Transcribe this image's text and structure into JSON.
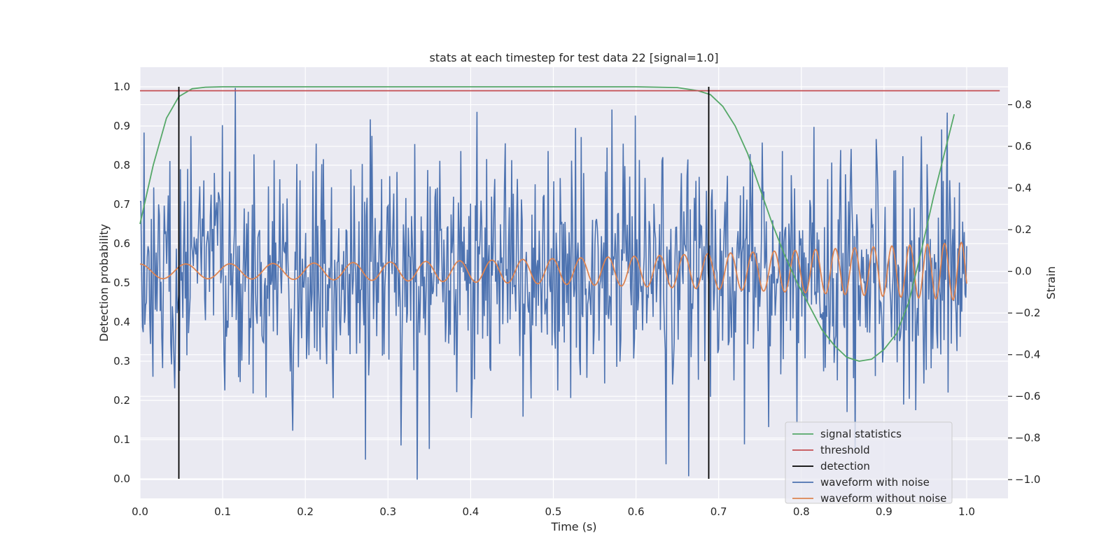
{
  "chart_data": {
    "type": "line",
    "title": "stats at each timestep for test data 22 [signal=1.0]",
    "xlabel": "Time (s)",
    "ylabel_left": "Detection probability",
    "ylabel_right": "Strain",
    "xlim": [
      0.0,
      1.05
    ],
    "ylim_left": [
      -0.05,
      1.05
    ],
    "ylim_right": [
      -1.09,
      0.98
    ],
    "x_ticks": [
      "0.0",
      "0.1",
      "0.2",
      "0.3",
      "0.4",
      "0.5",
      "0.6",
      "0.7",
      "0.8",
      "0.9",
      "1.0"
    ],
    "y_left_ticks": [
      "0.0",
      "0.1",
      "0.2",
      "0.3",
      "0.4",
      "0.5",
      "0.6",
      "0.7",
      "0.8",
      "0.9",
      "1.0"
    ],
    "y_right_ticks": [
      "−1.0",
      "−0.8",
      "−0.6",
      "−0.4",
      "−0.2",
      "0.0",
      "0.2",
      "0.4",
      "0.6",
      "0.8"
    ],
    "grid": true,
    "legend_position": "lower right",
    "colors": {
      "background": "#eaeaf2",
      "signal_statistics": "#55a868",
      "threshold": "#c44e52",
      "detection": "#000000",
      "waveform_with_noise": "#4c72b0",
      "waveform_without_noise": "#dd8452"
    },
    "series": [
      {
        "name": "signal statistics",
        "axis": "left",
        "x": [
          0.0,
          0.016,
          0.032,
          0.047,
          0.063,
          0.079,
          0.1,
          0.2,
          0.3,
          0.4,
          0.5,
          0.6,
          0.65,
          0.675,
          0.69,
          0.705,
          0.72,
          0.735,
          0.75,
          0.765,
          0.78,
          0.795,
          0.81,
          0.825,
          0.84,
          0.855,
          0.87,
          0.885,
          0.9,
          0.915,
          0.93,
          0.945,
          0.96,
          0.985
        ],
        "y": [
          0.65,
          0.8,
          0.92,
          0.975,
          0.995,
          0.999,
          1.0,
          1.0,
          1.0,
          1.0,
          1.0,
          1.0,
          0.998,
          0.99,
          0.98,
          0.95,
          0.9,
          0.83,
          0.74,
          0.65,
          0.57,
          0.5,
          0.44,
          0.38,
          0.34,
          0.31,
          0.3,
          0.305,
          0.33,
          0.37,
          0.45,
          0.58,
          0.72,
          0.93
        ]
      },
      {
        "name": "threshold",
        "axis": "left",
        "x": [
          0.0,
          1.04
        ],
        "y": [
          0.99,
          0.99
        ]
      },
      {
        "name": "detection",
        "axis": "left",
        "x": [
          0.047,
          0.688
        ],
        "y_range": [
          0.0,
          1.0
        ]
      },
      {
        "name": "waveform with noise",
        "axis": "right",
        "x_range": [
          0.0,
          1.0
        ],
        "samples": 1024,
        "amplitude_std": 0.28,
        "approx_range": [
          -1.0,
          0.9
        ]
      },
      {
        "name": "waveform without noise",
        "axis": "right",
        "x_range": [
          0.0,
          1.0
        ],
        "description_values": {
          "start_amplitude": 0.035,
          "end_amplitude": 0.14,
          "start_frequency_hz": 18,
          "end_frequency_hz": 50
        }
      }
    ],
    "legend": [
      "signal statistics",
      "threshold",
      "detection",
      "waveform with noise",
      "waveform without noise"
    ]
  }
}
